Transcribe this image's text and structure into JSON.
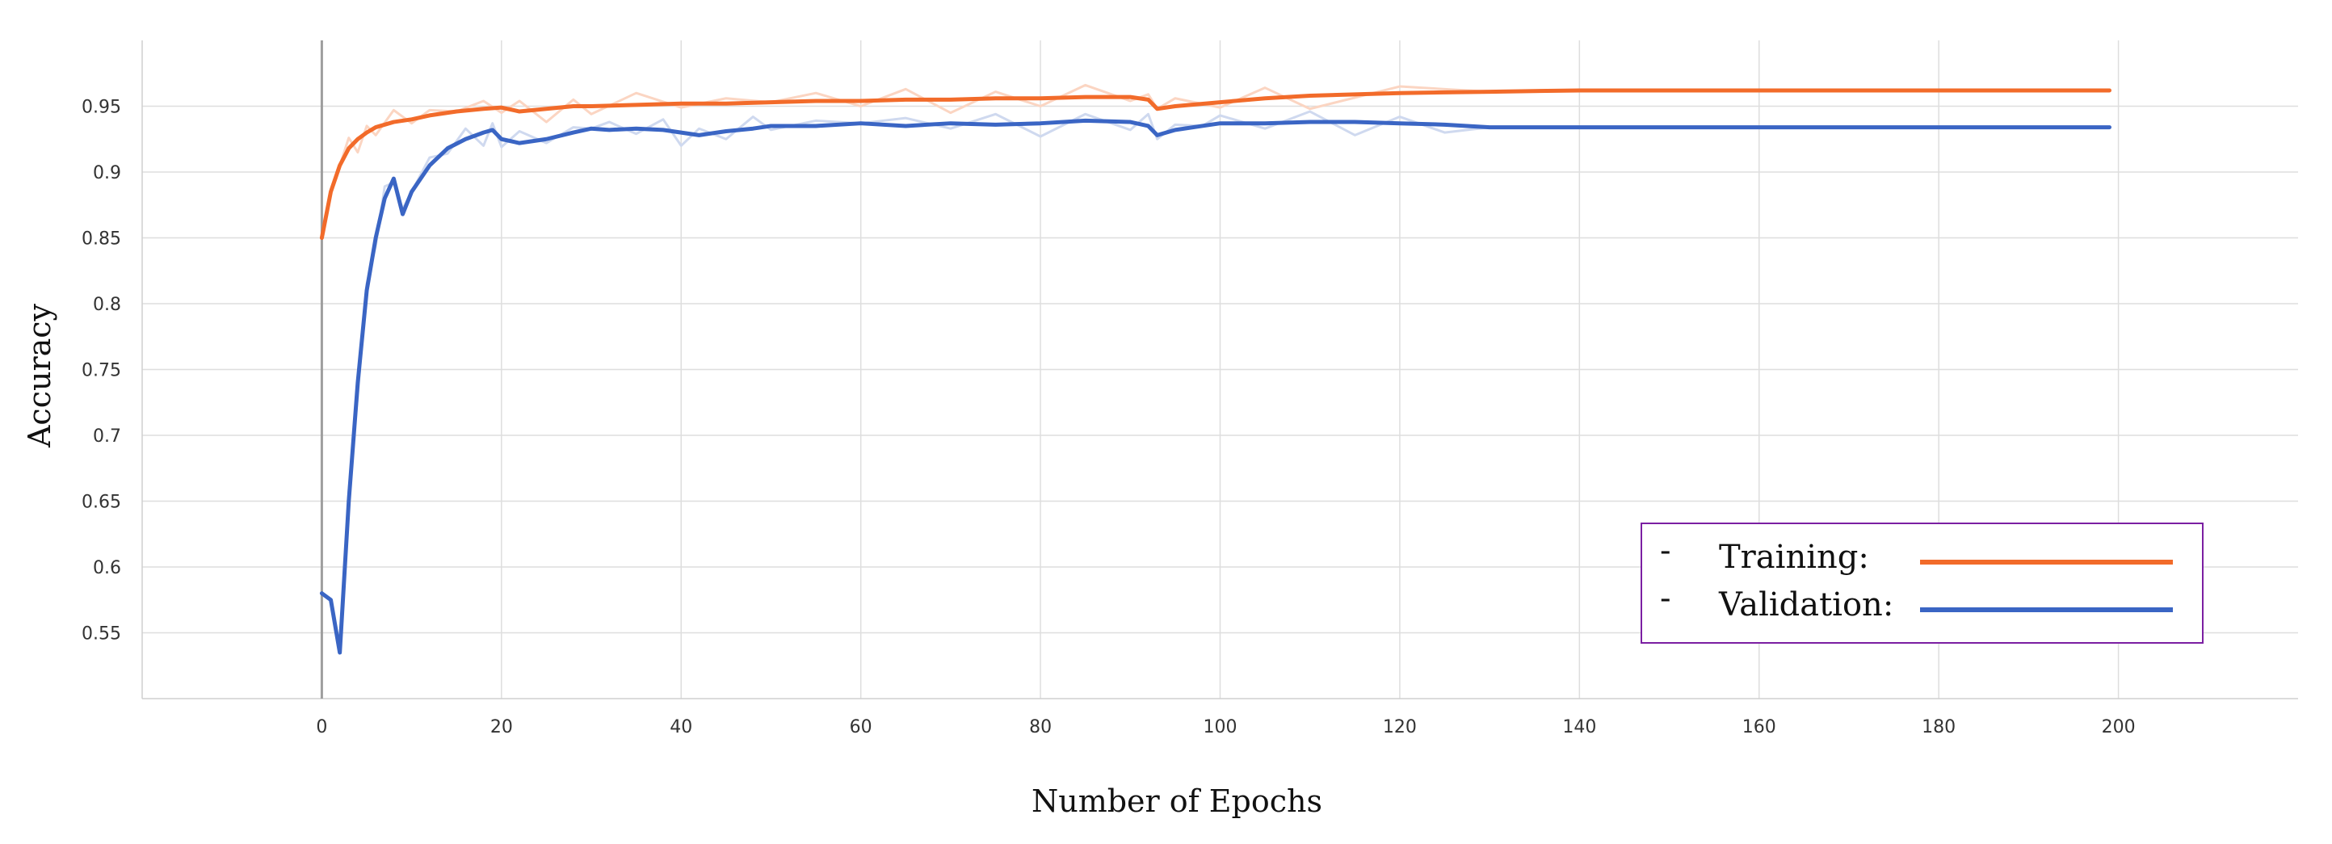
{
  "chart_data": {
    "type": "line",
    "xlabel": "Number of Epochs",
    "ylabel": "Accuracy",
    "xlim": [
      -20,
      220
    ],
    "ylim": [
      0.5,
      1.0
    ],
    "xticks": [
      0,
      20,
      40,
      60,
      80,
      100,
      120,
      140,
      160,
      180,
      200
    ],
    "yticks": [
      0.55,
      0.6,
      0.65,
      0.7,
      0.75,
      0.8,
      0.85,
      0.9,
      0.95
    ],
    "ytick_labels": [
      "0.55",
      "0.6",
      "0.65",
      "0.7",
      "0.75",
      "0.8",
      "0.85",
      "0.9",
      "0.95"
    ],
    "grid": true,
    "legend_position": "bottom-right",
    "legend_marker": "-",
    "series": [
      {
        "name": "Training:",
        "color": "#f26b2a",
        "raw_color": "#fbd5c2",
        "x": [
          0,
          1,
          2,
          3,
          4,
          5,
          6,
          8,
          10,
          12,
          15,
          18,
          20,
          22,
          25,
          28,
          30,
          35,
          40,
          45,
          50,
          55,
          60,
          65,
          70,
          75,
          80,
          85,
          90,
          92,
          93,
          95,
          100,
          105,
          110,
          120,
          130,
          140,
          150,
          160,
          170,
          180,
          190,
          199
        ],
        "y": [
          0.85,
          0.885,
          0.905,
          0.918,
          0.925,
          0.93,
          0.934,
          0.938,
          0.94,
          0.943,
          0.946,
          0.948,
          0.949,
          0.946,
          0.948,
          0.95,
          0.95,
          0.951,
          0.952,
          0.952,
          0.953,
          0.954,
          0.954,
          0.955,
          0.955,
          0.956,
          0.956,
          0.957,
          0.957,
          0.955,
          0.948,
          0.95,
          0.953,
          0.956,
          0.958,
          0.96,
          0.961,
          0.962,
          0.962,
          0.962,
          0.962,
          0.962,
          0.962,
          0.962
        ]
      },
      {
        "name": "Validation:",
        "color": "#3a65c4",
        "raw_color": "#cfd9ef",
        "x": [
          0,
          1,
          2,
          3,
          4,
          5,
          6,
          7,
          8,
          9,
          10,
          12,
          14,
          16,
          18,
          19,
          20,
          22,
          25,
          28,
          30,
          32,
          35,
          38,
          40,
          42,
          45,
          48,
          50,
          55,
          60,
          65,
          70,
          75,
          80,
          85,
          90,
          92,
          93,
          95,
          98,
          100,
          105,
          110,
          115,
          120,
          125,
          130,
          140,
          150,
          160,
          170,
          180,
          190,
          199
        ],
        "y": [
          0.58,
          0.575,
          0.535,
          0.65,
          0.74,
          0.81,
          0.85,
          0.88,
          0.895,
          0.868,
          0.885,
          0.905,
          0.918,
          0.925,
          0.93,
          0.932,
          0.925,
          0.922,
          0.925,
          0.93,
          0.933,
          0.932,
          0.933,
          0.932,
          0.93,
          0.928,
          0.931,
          0.933,
          0.935,
          0.935,
          0.937,
          0.935,
          0.937,
          0.936,
          0.937,
          0.939,
          0.938,
          0.935,
          0.928,
          0.932,
          0.935,
          0.937,
          0.937,
          0.938,
          0.938,
          0.937,
          0.936,
          0.934,
          0.934,
          0.934,
          0.934,
          0.934,
          0.934,
          0.934,
          0.934
        ]
      }
    ]
  }
}
